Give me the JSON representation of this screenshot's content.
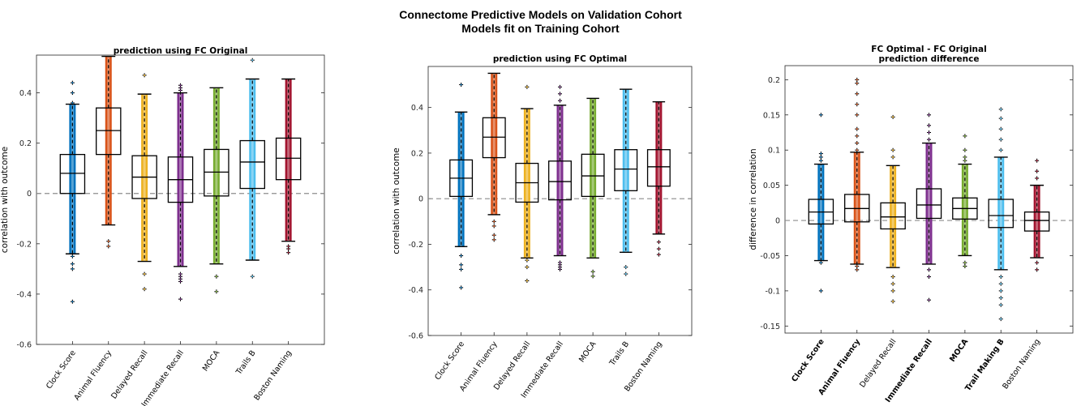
{
  "figure": {
    "title_line1": "Connectome Predictive Models on Validation Cohort",
    "title_line2": "Models fit on Training Cohort"
  },
  "chart_data": [
    {
      "type": "box",
      "title": [
        "prediction using FC Original"
      ],
      "ylabel": "correlation with outcome",
      "xlabel": "",
      "ylim": [
        -0.6,
        0.55
      ],
      "yticks": [
        -0.6,
        -0.4,
        -0.2,
        0,
        0.2,
        0.4
      ],
      "ytick_labels": [
        "-0.6",
        "-0.4",
        "-0.2",
        "0",
        "0.2",
        "0.4"
      ],
      "categories": [
        "Clock Score",
        "Animal Fluency",
        "Delayed Recall",
        "Immediate Recall",
        "MOCA",
        "Trails B",
        "Boston Naming"
      ],
      "bold_categories": [
        false,
        false,
        false,
        false,
        false,
        false,
        false
      ],
      "colors": [
        "#0072BD",
        "#D95319",
        "#EDB120",
        "#7E2F8E",
        "#77AC30",
        "#4DBEEE",
        "#A2142F"
      ],
      "boxes": [
        {
          "q1": 0.0,
          "median": 0.08,
          "q3": 0.155,
          "whisker_low": -0.24,
          "whisker_high": 0.355,
          "outliers": [
            -0.43,
            -0.3,
            -0.28,
            -0.25,
            0.36,
            0.4,
            0.44
          ]
        },
        {
          "q1": 0.155,
          "median": 0.25,
          "q3": 0.34,
          "whisker_low": -0.125,
          "whisker_high": 0.545,
          "outliers": [
            -0.21,
            -0.19
          ]
        },
        {
          "q1": -0.02,
          "median": 0.065,
          "q3": 0.15,
          "whisker_low": -0.27,
          "whisker_high": 0.395,
          "outliers": [
            -0.38,
            -0.32,
            0.47
          ]
        },
        {
          "q1": -0.035,
          "median": 0.055,
          "q3": 0.145,
          "whisker_low": -0.29,
          "whisker_high": 0.4,
          "outliers": [
            -0.42,
            -0.35,
            -0.34,
            -0.33,
            -0.32,
            0.41,
            0.42,
            0.43
          ]
        },
        {
          "q1": -0.01,
          "median": 0.085,
          "q3": 0.175,
          "whisker_low": -0.28,
          "whisker_high": 0.42,
          "outliers": [
            -0.39,
            -0.33
          ]
        },
        {
          "q1": 0.02,
          "median": 0.125,
          "q3": 0.21,
          "whisker_low": -0.265,
          "whisker_high": 0.455,
          "outliers": [
            -0.33,
            0.53
          ]
        },
        {
          "q1": 0.055,
          "median": 0.14,
          "q3": 0.22,
          "whisker_low": -0.19,
          "whisker_high": 0.455,
          "outliers": [
            -0.235,
            -0.22,
            -0.21
          ]
        }
      ],
      "reference_line": 0,
      "grid": false
    },
    {
      "type": "box",
      "title": [
        "prediction using FC Optimal"
      ],
      "ylabel": "correlation with outcome",
      "xlabel": "",
      "ylim": [
        -0.6,
        0.58
      ],
      "yticks": [
        -0.6,
        -0.4,
        -0.2,
        0,
        0.2,
        0.4
      ],
      "ytick_labels": [
        "-0.6",
        "-0.4",
        "-0.2",
        "0",
        "0.2",
        "0.4"
      ],
      "categories": [
        "Clock Score",
        "Animal Fluency",
        "Delayed Recall",
        "Immediate Recall",
        "MOCA",
        "Trails B",
        "Boston Naming"
      ],
      "bold_categories": [
        false,
        false,
        false,
        false,
        false,
        false,
        false
      ],
      "colors": [
        "#0072BD",
        "#D95319",
        "#EDB120",
        "#7E2F8E",
        "#77AC30",
        "#4DBEEE",
        "#A2142F"
      ],
      "boxes": [
        {
          "q1": 0.01,
          "median": 0.09,
          "q3": 0.17,
          "whisker_low": -0.21,
          "whisker_high": 0.38,
          "outliers": [
            -0.39,
            -0.31,
            -0.29,
            -0.25,
            0.5
          ]
        },
        {
          "q1": 0.18,
          "median": 0.27,
          "q3": 0.355,
          "whisker_low": -0.07,
          "whisker_high": 0.55,
          "outliers": [
            -0.18,
            -0.16,
            -0.12,
            -0.1
          ]
        },
        {
          "q1": -0.015,
          "median": 0.07,
          "q3": 0.155,
          "whisker_low": -0.26,
          "whisker_high": 0.395,
          "outliers": [
            -0.36,
            -0.3,
            -0.27,
            0.49
          ]
        },
        {
          "q1": -0.005,
          "median": 0.075,
          "q3": 0.165,
          "whisker_low": -0.25,
          "whisker_high": 0.41,
          "outliers": [
            -0.31,
            -0.3,
            -0.29,
            -0.28,
            0.43,
            0.46,
            0.49
          ]
        },
        {
          "q1": 0.01,
          "median": 0.1,
          "q3": 0.195,
          "whisker_low": -0.26,
          "whisker_high": 0.44,
          "outliers": [
            -0.34,
            -0.32
          ]
        },
        {
          "q1": 0.035,
          "median": 0.13,
          "q3": 0.215,
          "whisker_low": -0.235,
          "whisker_high": 0.48,
          "outliers": [
            -0.33,
            -0.3
          ]
        },
        {
          "q1": 0.055,
          "median": 0.14,
          "q3": 0.215,
          "whisker_low": -0.155,
          "whisker_high": 0.425,
          "outliers": [
            -0.245,
            -0.22,
            -0.19
          ]
        }
      ],
      "reference_line": 0,
      "grid": false
    },
    {
      "type": "box",
      "title": [
        "FC Optimal - FC Original",
        "prediction difference"
      ],
      "ylabel": "difference in correlation",
      "xlabel": "",
      "ylim": [
        -0.16,
        0.22
      ],
      "yticks": [
        -0.15,
        -0.1,
        -0.05,
        0,
        0.05,
        0.1,
        0.15,
        0.2
      ],
      "ytick_labels": [
        "-0.15",
        "-0.1",
        "-0.05",
        "0",
        "0.05",
        "0.1",
        "0.15",
        "0.2"
      ],
      "categories": [
        "Clock Score",
        "Animal Fluency",
        "Delayed Recall",
        "Immediate Recall",
        "MOCA",
        "Trail Making B",
        "Boston Naming"
      ],
      "bold_categories": [
        true,
        true,
        false,
        true,
        true,
        true,
        false
      ],
      "colors": [
        "#0072BD",
        "#D95319",
        "#EDB120",
        "#7E2F8E",
        "#77AC30",
        "#4DBEEE",
        "#A2142F"
      ],
      "boxes": [
        {
          "q1": -0.005,
          "median": 0.012,
          "q3": 0.03,
          "whisker_low": -0.057,
          "whisker_high": 0.08,
          "outliers": [
            -0.1,
            -0.06,
            0.085,
            0.09,
            0.095,
            0.15
          ]
        },
        {
          "q1": -0.002,
          "median": 0.017,
          "q3": 0.037,
          "whisker_low": -0.062,
          "whisker_high": 0.097,
          "outliers": [
            -0.07,
            -0.065,
            0.1,
            0.11,
            0.12,
            0.13,
            0.15,
            0.165,
            0.18,
            0.195,
            0.2
          ]
        },
        {
          "q1": -0.012,
          "median": 0.005,
          "q3": 0.025,
          "whisker_low": -0.067,
          "whisker_high": 0.078,
          "outliers": [
            -0.115,
            -0.1,
            -0.09,
            -0.08,
            0.09,
            0.1,
            0.147
          ]
        },
        {
          "q1": 0.003,
          "median": 0.022,
          "q3": 0.045,
          "whisker_low": -0.062,
          "whisker_high": 0.11,
          "outliers": [
            -0.113,
            -0.08,
            -0.07,
            0.115,
            0.125,
            0.135,
            0.15
          ]
        },
        {
          "q1": 0.002,
          "median": 0.017,
          "q3": 0.032,
          "whisker_low": -0.05,
          "whisker_high": 0.08,
          "outliers": [
            -0.065,
            -0.06,
            0.085,
            0.09,
            0.1,
            0.12
          ]
        },
        {
          "q1": -0.01,
          "median": 0.007,
          "q3": 0.03,
          "whisker_low": -0.07,
          "whisker_high": 0.09,
          "outliers": [
            -0.14,
            -0.12,
            -0.11,
            -0.1,
            -0.09,
            -0.08,
            0.1,
            0.115,
            0.13,
            0.145,
            0.158
          ]
        },
        {
          "q1": -0.015,
          "median": 0.0,
          "q3": 0.012,
          "whisker_low": -0.053,
          "whisker_high": 0.05,
          "outliers": [
            -0.07,
            -0.06,
            0.06,
            0.07,
            0.085
          ]
        }
      ],
      "reference_line": 0,
      "grid": false
    }
  ]
}
